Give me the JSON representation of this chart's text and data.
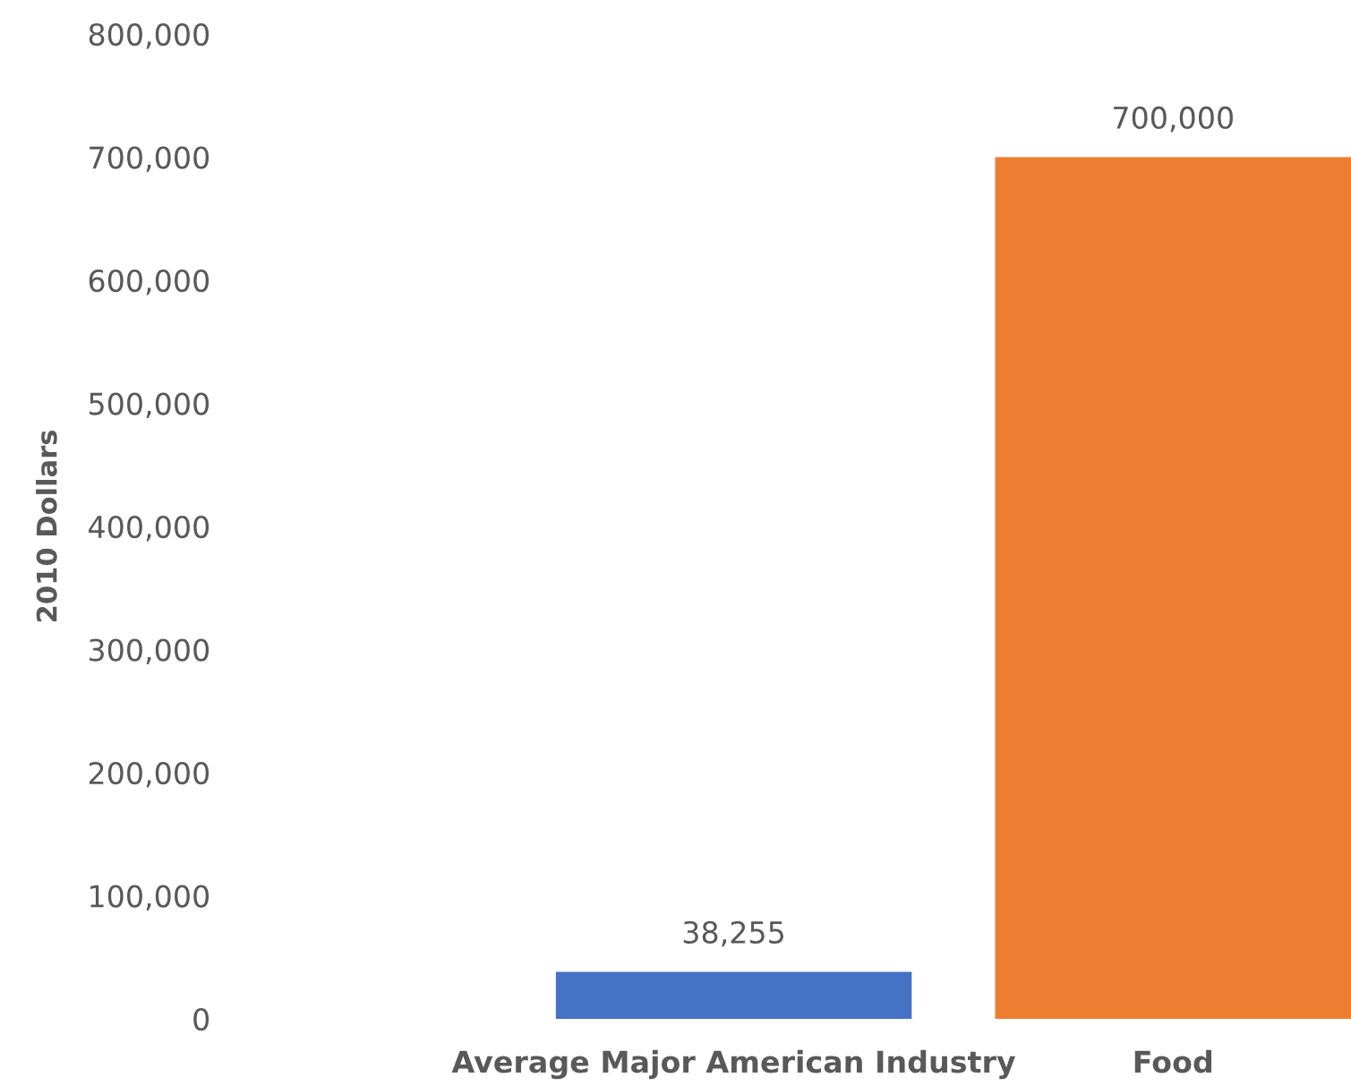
{
  "chart_data": {
    "type": "bar",
    "ylabel": "2010 Dollars",
    "categories": [
      "Average Major American Industry",
      "Food"
    ],
    "values": [
      38255,
      700000
    ],
    "colors": [
      "#4472c4",
      "#ed7d31"
    ],
    "ylim": [
      0,
      800000
    ],
    "yticks": [
      {
        "value": 0,
        "label": "0"
      },
      {
        "value": 100000,
        "label": "100,000"
      },
      {
        "value": 200000,
        "label": "200,000"
      },
      {
        "value": 300000,
        "label": "300,000"
      },
      {
        "value": 400000,
        "label": "400,000"
      },
      {
        "value": 500000,
        "label": "500,000"
      },
      {
        "value": 600000,
        "label": "600,000"
      },
      {
        "value": 700000,
        "label": "700,000"
      },
      {
        "value": 800000,
        "label": "800,000"
      }
    ],
    "value_labels": [
      "38,255",
      "700,000"
    ],
    "grid": false,
    "legend": false
  }
}
